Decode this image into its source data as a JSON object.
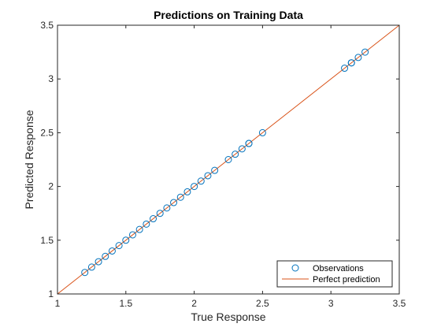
{
  "chart_data": {
    "type": "scatter",
    "title": "Predictions on Training Data",
    "xlabel": "True Response",
    "ylabel": "Predicted Response",
    "xlim": [
      1,
      3.5
    ],
    "ylim": [
      1,
      3.5
    ],
    "xticks": [
      "1",
      "1.5",
      "2",
      "2.5",
      "3",
      "3.5"
    ],
    "yticks": [
      "1",
      "1.5",
      "2",
      "2.5",
      "3",
      "3.5"
    ],
    "grid": false,
    "legend_position": "bottom-right",
    "series": [
      {
        "name": "Observations",
        "kind": "scatter",
        "marker": "open-circle",
        "color": "#0072BD",
        "x": [
          1.2,
          1.25,
          1.3,
          1.35,
          1.4,
          1.45,
          1.5,
          1.55,
          1.6,
          1.65,
          1.7,
          1.75,
          1.8,
          1.85,
          1.9,
          1.95,
          2.0,
          2.05,
          2.1,
          2.15,
          2.25,
          2.3,
          2.35,
          2.4,
          2.4,
          2.5,
          3.1,
          3.15,
          3.15,
          3.2,
          3.25
        ],
        "y": [
          1.2,
          1.25,
          1.3,
          1.35,
          1.4,
          1.45,
          1.5,
          1.55,
          1.6,
          1.65,
          1.7,
          1.75,
          1.8,
          1.85,
          1.9,
          1.95,
          2.0,
          2.05,
          2.1,
          2.15,
          2.25,
          2.3,
          2.35,
          2.4,
          2.4,
          2.5,
          3.1,
          3.15,
          3.15,
          3.2,
          3.25
        ]
      },
      {
        "name": "Perfect prediction",
        "kind": "line",
        "color": "#D95319",
        "x": [
          1,
          3.5
        ],
        "y": [
          1,
          3.5
        ]
      }
    ]
  }
}
